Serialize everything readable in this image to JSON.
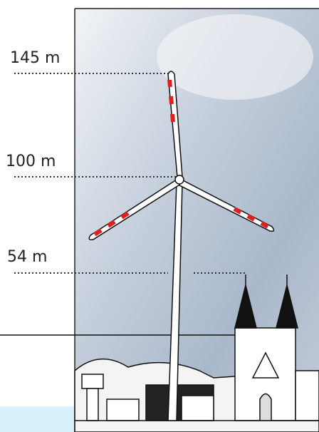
{
  "markers": [
    "145 m",
    "100 m",
    "54 m"
  ]
}
